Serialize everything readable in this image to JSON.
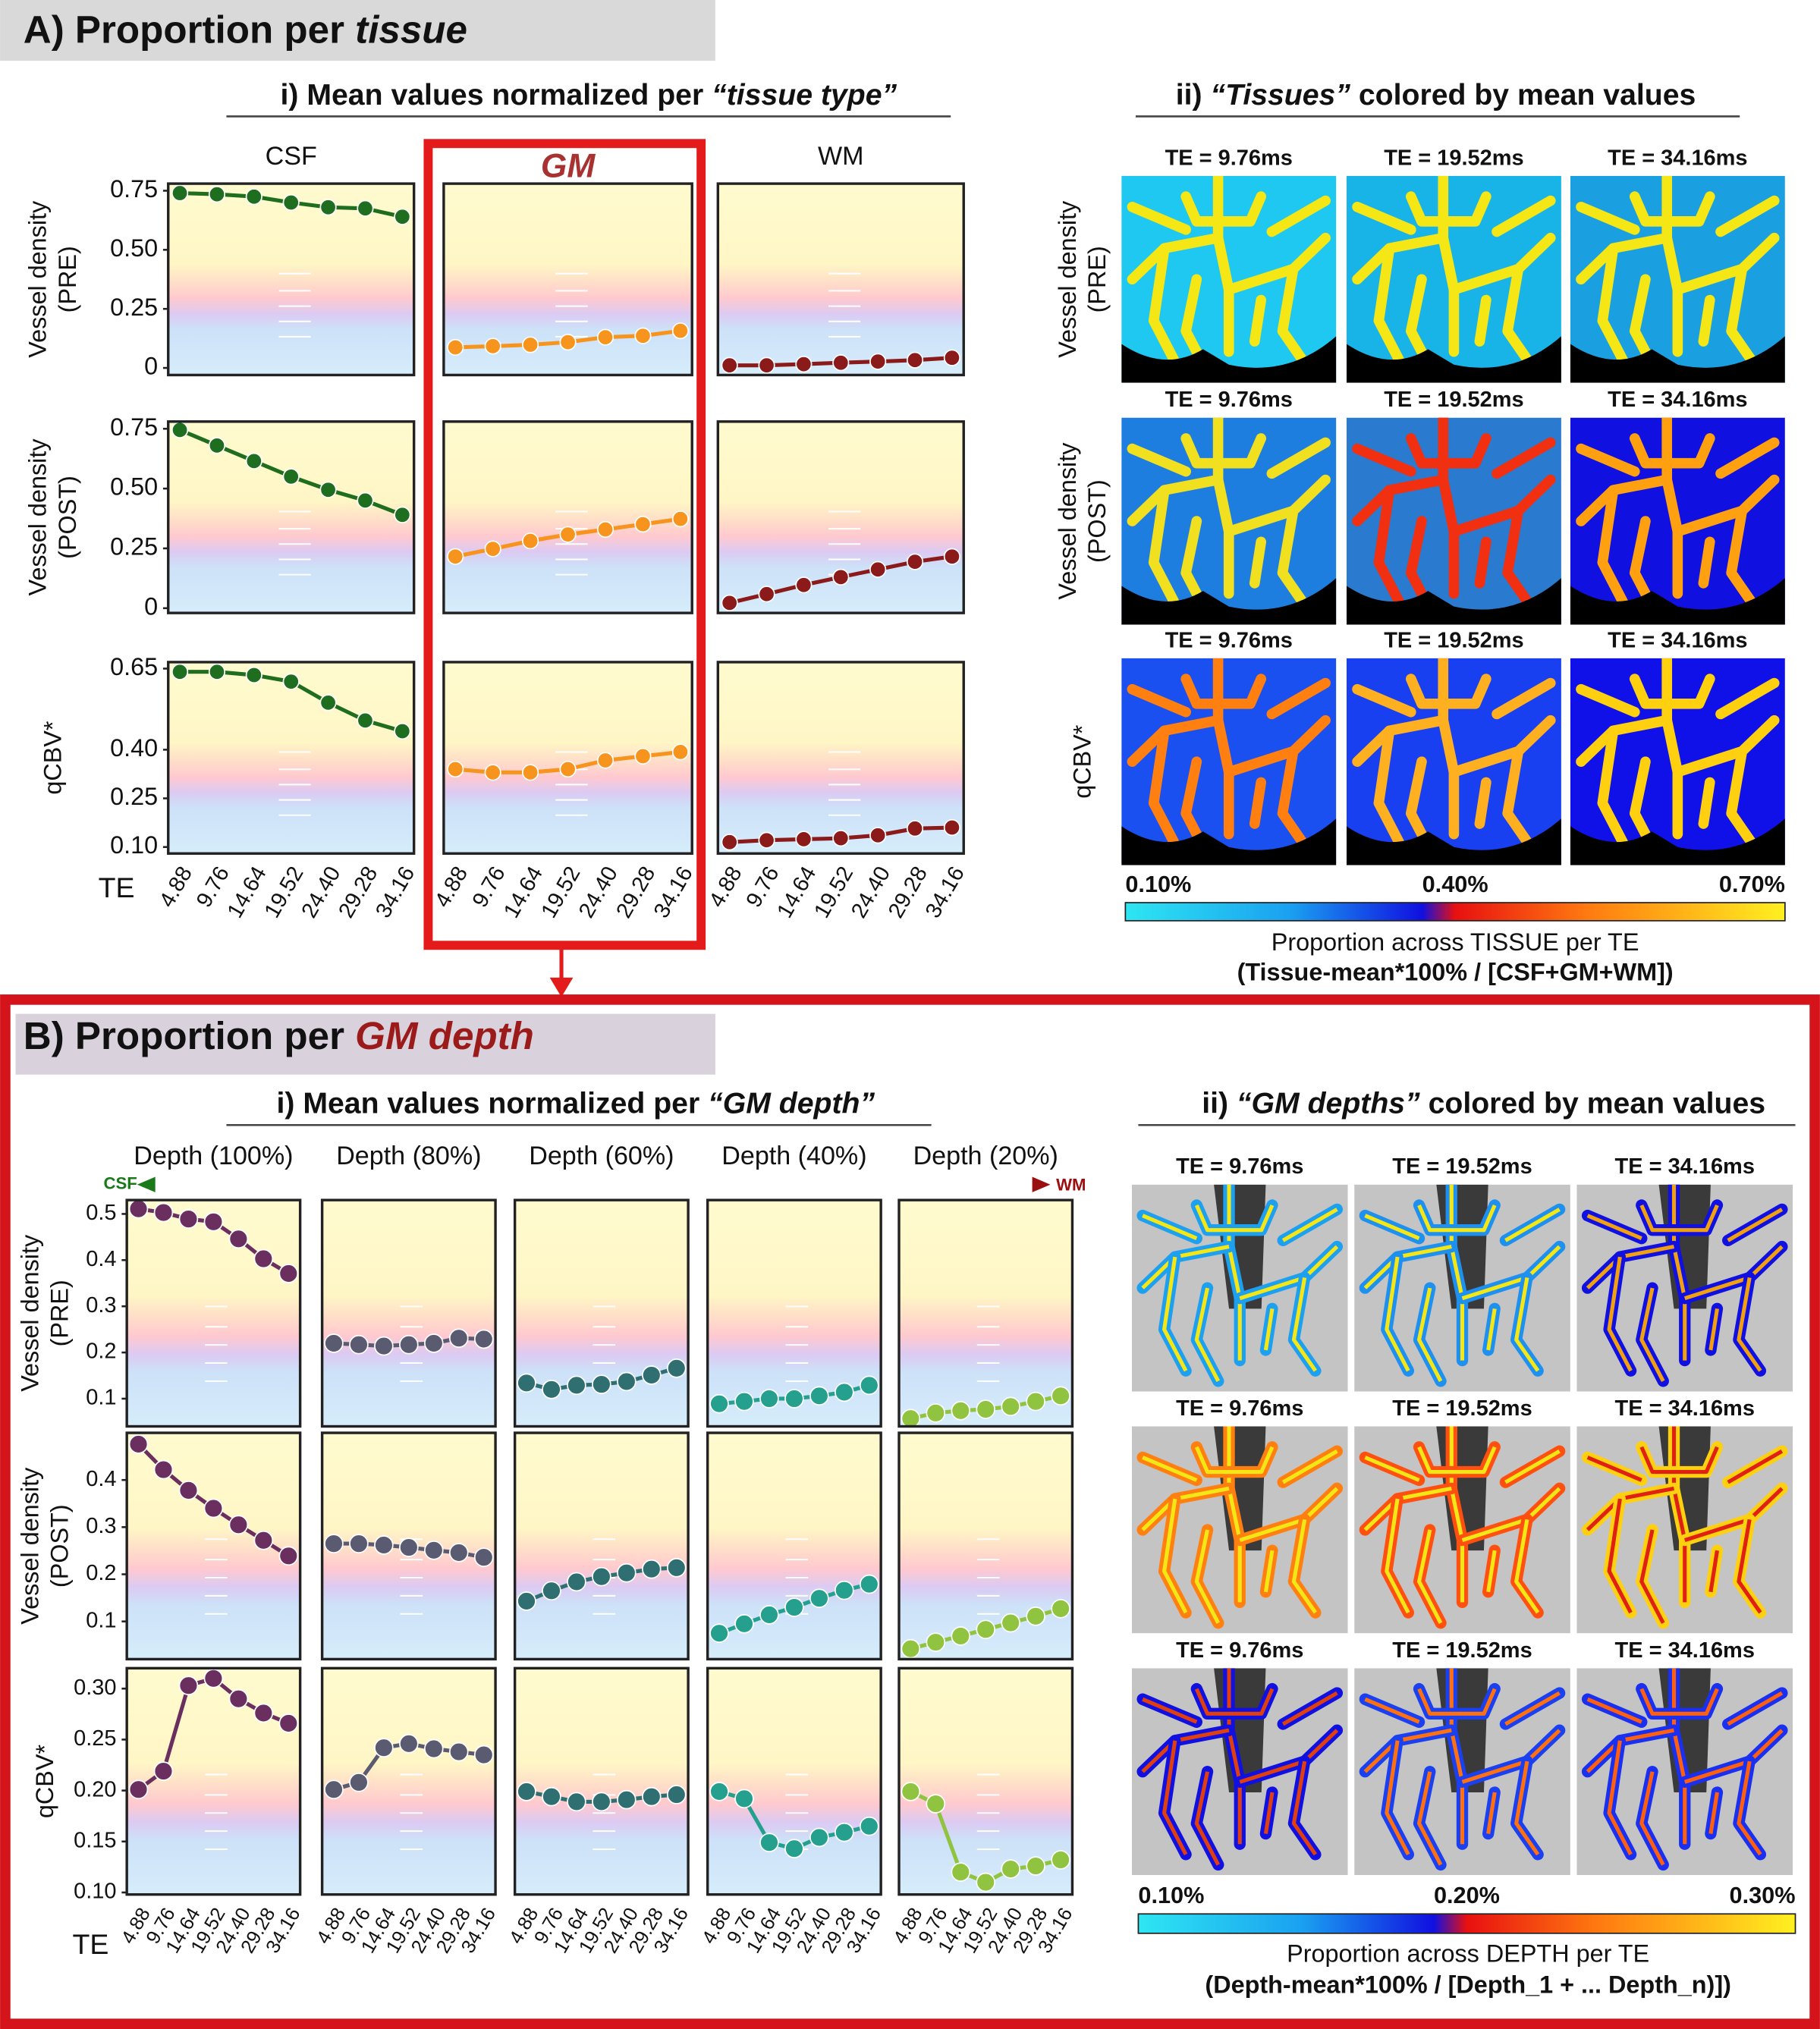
{
  "panel_a": {
    "heading": [
      "A) Proportion per ",
      "tissue"
    ],
    "subtitle_i": [
      "i) Mean values normalized per ",
      "“tissue type”"
    ],
    "subtitle_ii": [
      "ii) ",
      "“Tissues”",
      " colored by mean values"
    ],
    "images": {
      "row_labels": [
        [
          "Vessel density",
          "(PRE)"
        ],
        [
          "Vessel density",
          "(POST)"
        ],
        [
          "qCBV*"
        ]
      ],
      "te_labels": [
        "TE = 9.76ms",
        "TE = 19.52ms",
        "TE = 34.16ms",
        "TE = 9.76ms",
        "TE = 19.52ms",
        "TE = 34.16ms",
        "TE = 9.76ms",
        "TE = 19.52ms",
        "TE = 34.16ms"
      ]
    },
    "colorbar": {
      "clim": [
        0.1,
        0.7
      ],
      "ticks": [
        {
          "value": 0.1,
          "label": "0.10%"
        },
        {
          "value": 0.4,
          "label": "0.40%"
        },
        {
          "value": 0.7,
          "label": "0.70%"
        }
      ],
      "caption": [
        "Proportion across TISSUE per TE",
        "(Tissue-mean*100% / [CSF+GM+WM])"
      ]
    }
  },
  "panel_b": {
    "heading": [
      "B) Proportion per ",
      "GM depth"
    ],
    "subtitle_i": [
      "i) Mean values normalized per ",
      "“GM depth”"
    ],
    "subtitle_ii": [
      "ii) ",
      "“GM depths”",
      " colored by mean values"
    ],
    "axis_arrow": [
      "CSF",
      "WM"
    ],
    "images": {
      "te_labels": [
        "TE = 9.76ms",
        "TE = 19.52ms",
        "TE = 34.16ms",
        "TE = 9.76ms",
        "TE = 19.52ms",
        "TE = 34.16ms",
        "TE = 9.76ms",
        "TE = 19.52ms",
        "TE = 34.16ms"
      ]
    },
    "colorbar": {
      "clim": [
        0.1,
        0.3
      ],
      "ticks": [
        {
          "value": 0.1,
          "label": "0.10%"
        },
        {
          "value": 0.2,
          "label": "0.20%"
        },
        {
          "value": 0.3,
          "label": "0.30%"
        }
      ],
      "caption": [
        "Proportion across DEPTH per TE",
        "(Depth-mean*100% / [Depth_1 + ... Depth_n)])"
      ]
    }
  },
  "chart_data": [
    {
      "type": "line",
      "title": "CSF",
      "ylabel": [
        "Vessel density",
        "(PRE)"
      ],
      "color": "#1f6e1f",
      "ylim": [
        -0.03,
        0.78
      ],
      "yticks": [
        0.75,
        {
          "value": 0.5,
          "label": "0.50"
        },
        0.25,
        0
      ],
      "values": [
        0.74,
        0.735,
        0.725,
        0.7,
        0.68,
        0.675,
        0.64
      ]
    },
    {
      "type": "line",
      "title": "GM",
      "title_color": "#a83232",
      "color": "#f7941d",
      "ylim": [
        -0.03,
        0.78
      ],
      "values": [
        0.087,
        0.092,
        0.098,
        0.109,
        0.13,
        0.136,
        0.157
      ]
    },
    {
      "type": "line",
      "title": "WM",
      "color": "#8b1a1a",
      "ylim": [
        -0.03,
        0.78
      ],
      "values": [
        0.011,
        0.011,
        0.016,
        0.022,
        0.027,
        0.033,
        0.043
      ]
    },
    {
      "type": "line",
      "ylabel": [
        "Vessel density",
        "(POST)"
      ],
      "color": "#1f6e1f",
      "ylim": [
        -0.02,
        0.78
      ],
      "yticks": [
        0.75,
        {
          "value": 0.5,
          "label": "0.50"
        },
        0.25,
        0
      ],
      "values": [
        0.745,
        0.68,
        0.615,
        0.55,
        0.495,
        0.45,
        0.39
      ]
    },
    {
      "type": "line",
      "color": "#f7941d",
      "ylim": [
        -0.02,
        0.78
      ],
      "values": [
        0.216,
        0.248,
        0.281,
        0.308,
        0.329,
        0.351,
        0.373
      ]
    },
    {
      "type": "line",
      "color": "#8b1a1a",
      "ylim": [
        -0.02,
        0.78
      ],
      "values": [
        0.022,
        0.059,
        0.097,
        0.13,
        0.162,
        0.194,
        0.216
      ]
    },
    {
      "type": "line",
      "ylabel": [
        "qCBV*"
      ],
      "xlabel": "TE",
      "color": "#1f6e1f",
      "ylim": [
        0.08,
        0.67
      ],
      "yticks": [
        0.65,
        {
          "value": 0.4,
          "label": "0.40"
        },
        0.25,
        {
          "value": 0.1,
          "label": "0.10"
        }
      ],
      "categories": [
        "4.88",
        "9.76",
        "14.64",
        "19.52",
        "24.40",
        "29.28",
        "34.16"
      ],
      "values": [
        0.64,
        0.64,
        0.63,
        0.61,
        0.545,
        0.49,
        0.457
      ]
    },
    {
      "type": "line",
      "color": "#f7941d",
      "ylim": [
        0.08,
        0.67
      ],
      "categories": [
        "4.88",
        "9.76",
        "14.64",
        "19.52",
        "24.40",
        "29.28",
        "34.16"
      ],
      "values": [
        0.34,
        0.33,
        0.33,
        0.34,
        0.367,
        0.38,
        0.393
      ]
    },
    {
      "type": "line",
      "color": "#8b1a1a",
      "ylim": [
        0.08,
        0.67
      ],
      "categories": [
        "4.88",
        "9.76",
        "14.64",
        "19.52",
        "24.40",
        "29.28",
        "34.16"
      ],
      "values": [
        0.115,
        0.121,
        0.124,
        0.127,
        0.136,
        0.157,
        0.16
      ]
    },
    {
      "type": "line",
      "title": "Depth (100%)",
      "ylabel": [
        "Vessel density",
        "(PRE)"
      ],
      "color": "#6b2f5f",
      "ylim": [
        0.04,
        0.53
      ],
      "yticks": [
        0.5,
        0.4,
        0.3,
        0.2,
        0.1
      ],
      "values": [
        0.511,
        0.503,
        0.489,
        0.483,
        0.446,
        0.403,
        0.371
      ]
    },
    {
      "type": "line",
      "title": "Depth (80%)",
      "color": "#5a5a70",
      "ylim": [
        0.04,
        0.53
      ],
      "values": [
        0.22,
        0.217,
        0.214,
        0.217,
        0.22,
        0.231,
        0.229
      ]
    },
    {
      "type": "line",
      "title": "Depth (60%)",
      "color": "#2f6f72",
      "ylim": [
        0.04,
        0.53
      ],
      "values": [
        0.134,
        0.12,
        0.129,
        0.131,
        0.137,
        0.151,
        0.166
      ]
    },
    {
      "type": "line",
      "title": "Depth (40%)",
      "color": "#26a08e",
      "ylim": [
        0.04,
        0.53
      ],
      "values": [
        0.089,
        0.094,
        0.1,
        0.1,
        0.106,
        0.114,
        0.129
      ]
    },
    {
      "type": "line",
      "title": "Depth (20%)",
      "color": "#90c440",
      "ylim": [
        0.04,
        0.53
      ],
      "values": [
        0.057,
        0.069,
        0.074,
        0.077,
        0.083,
        0.094,
        0.106
      ]
    },
    {
      "type": "line",
      "ylabel": [
        "Vessel density",
        "(POST)"
      ],
      "color": "#6b2f5f",
      "ylim": [
        0.02,
        0.5
      ],
      "yticks": [
        0.4,
        0.3,
        0.2,
        0.1
      ],
      "values": [
        0.476,
        0.422,
        0.378,
        0.34,
        0.305,
        0.272,
        0.239
      ]
    },
    {
      "type": "line",
      "color": "#5a5a70",
      "ylim": [
        0.02,
        0.5
      ],
      "values": [
        0.265,
        0.265,
        0.262,
        0.257,
        0.251,
        0.246,
        0.236
      ]
    },
    {
      "type": "line",
      "color": "#2f6f72",
      "ylim": [
        0.02,
        0.5
      ],
      "values": [
        0.143,
        0.165,
        0.184,
        0.195,
        0.203,
        0.211,
        0.214
      ]
    },
    {
      "type": "line",
      "color": "#26a08e",
      "ylim": [
        0.02,
        0.5
      ],
      "values": [
        0.075,
        0.095,
        0.114,
        0.13,
        0.149,
        0.166,
        0.179
      ]
    },
    {
      "type": "line",
      "color": "#90c440",
      "ylim": [
        0.02,
        0.5
      ],
      "values": [
        0.042,
        0.056,
        0.069,
        0.083,
        0.097,
        0.111,
        0.127
      ]
    },
    {
      "type": "line",
      "ylabel": [
        "qCBV*"
      ],
      "xlabel": "TE",
      "color": "#6b2f5f",
      "ylim": [
        0.098,
        0.32
      ],
      "yticks": [
        {
          "value": 0.3,
          "label": "0.30"
        },
        0.25,
        {
          "value": 0.2,
          "label": "0.20"
        },
        0.15,
        {
          "value": 0.1,
          "label": "0.10"
        }
      ],
      "categories": [
        "4.88",
        "9.76",
        "14.64",
        "19.52",
        "24.40",
        "29.28",
        "34.16"
      ],
      "values": [
        0.201,
        0.219,
        0.303,
        0.31,
        0.29,
        0.276,
        0.266
      ]
    },
    {
      "type": "line",
      "color": "#5a5a70",
      "ylim": [
        0.098,
        0.32
      ],
      "categories": [
        "4.88",
        "9.76",
        "14.64",
        "19.52",
        "24.40",
        "29.28",
        "34.16"
      ],
      "values": [
        0.201,
        0.208,
        0.242,
        0.246,
        0.241,
        0.238,
        0.235
      ]
    },
    {
      "type": "line",
      "color": "#2f6f72",
      "ylim": [
        0.098,
        0.32
      ],
      "categories": [
        "4.88",
        "9.76",
        "14.64",
        "19.52",
        "24.40",
        "29.28",
        "34.16"
      ],
      "values": [
        0.199,
        0.194,
        0.189,
        0.189,
        0.191,
        0.194,
        0.196
      ]
    },
    {
      "type": "line",
      "color": "#26a08e",
      "ylim": [
        0.098,
        0.32
      ],
      "categories": [
        "4.88",
        "9.76",
        "14.64",
        "19.52",
        "24.40",
        "29.28",
        "34.16"
      ],
      "values": [
        0.199,
        0.192,
        0.149,
        0.143,
        0.154,
        0.159,
        0.165
      ]
    },
    {
      "type": "line",
      "color": "#90c440",
      "ylim": [
        0.098,
        0.32
      ],
      "categories": [
        "4.88",
        "9.76",
        "14.64",
        "19.52",
        "24.40",
        "29.28",
        "34.16"
      ],
      "values": [
        0.199,
        0.187,
        0.12,
        0.11,
        0.123,
        0.126,
        0.132
      ]
    }
  ]
}
